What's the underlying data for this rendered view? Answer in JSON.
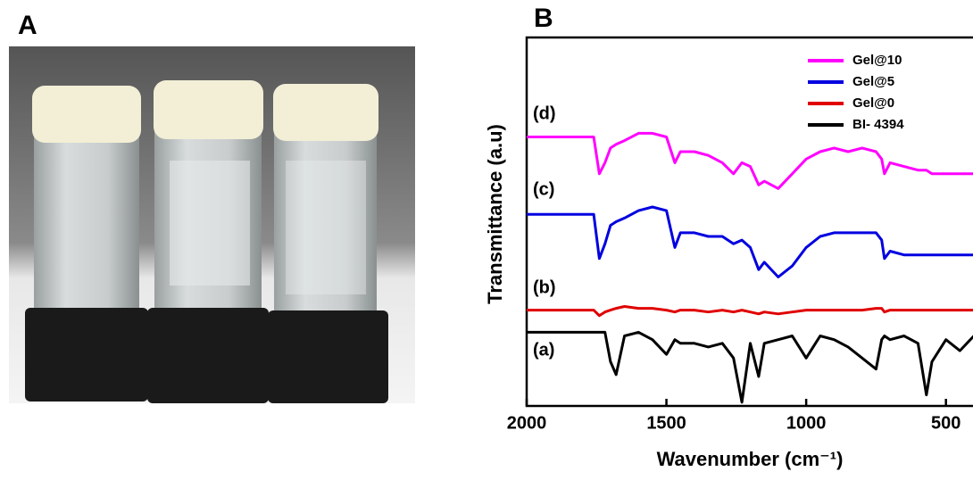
{
  "figure_labels": [
    "A",
    "B"
  ],
  "chart_data": {
    "type": "line",
    "xlabel": "Wavenumber (cm⁻¹)",
    "ylabel": "Transmittance (a.u)",
    "curve_labels": [
      "(d)",
      "(c)",
      "(b)",
      "(a)"
    ],
    "x": [
      2000,
      1900,
      1800,
      1760,
      1740,
      1720,
      1700,
      1680,
      1650,
      1600,
      1550,
      1500,
      1470,
      1450,
      1400,
      1350,
      1300,
      1260,
      1230,
      1200,
      1170,
      1150,
      1100,
      1050,
      1000,
      950,
      900,
      850,
      800,
      750,
      730,
      720,
      700,
      650,
      600,
      570,
      550,
      500,
      450,
      400
    ],
    "xlim": [
      2000,
      400
    ],
    "xticks": [
      2000,
      1500,
      1000,
      500
    ],
    "ylim": [
      0,
      100
    ],
    "legend": "upper right",
    "series": [
      {
        "name": "Gel@10",
        "color": "#ff00ff",
        "values": [
          73,
          73,
          73,
          73,
          63,
          66,
          70,
          71,
          72,
          74,
          74,
          73,
          66,
          69,
          69,
          68,
          66,
          63,
          66,
          65,
          60,
          61,
          59,
          63,
          67,
          69,
          70,
          69,
          70,
          69,
          67,
          63,
          66,
          65,
          64,
          64,
          63,
          63,
          63,
          63
        ]
      },
      {
        "name": "Gel@5",
        "color": "#0000e0",
        "values": [
          52,
          52,
          52,
          52,
          40,
          44,
          49,
          50,
          51,
          53,
          54,
          53,
          43,
          47,
          47,
          46,
          46,
          44,
          45,
          43,
          37,
          39,
          35,
          38,
          43,
          46,
          47,
          47,
          47,
          47,
          45,
          40,
          42,
          41,
          41,
          41,
          41,
          41,
          41,
          41
        ]
      },
      {
        "name": "Gel@0",
        "color": "#e00000",
        "values": [
          26,
          26,
          26,
          26,
          24.5,
          25.5,
          26,
          26.5,
          27,
          26.5,
          26.5,
          26,
          25.5,
          26,
          26,
          25.5,
          26,
          25.5,
          26,
          25.5,
          25,
          25.5,
          25,
          25.5,
          26,
          26,
          26,
          26,
          26,
          26.5,
          26.5,
          25.5,
          26,
          26,
          26,
          26,
          26,
          26,
          26,
          26
        ]
      },
      {
        "name": "BI- 4394",
        "color": "#000000",
        "values": [
          20,
          20,
          20,
          20,
          20,
          20,
          12,
          8.5,
          19,
          20,
          18,
          14,
          18,
          17,
          17,
          16,
          17,
          13,
          1,
          17,
          8,
          17,
          18,
          19,
          13,
          19,
          18,
          16,
          13,
          10,
          18,
          19,
          18,
          19,
          17,
          3,
          12,
          18,
          15,
          19
        ]
      }
    ]
  }
}
